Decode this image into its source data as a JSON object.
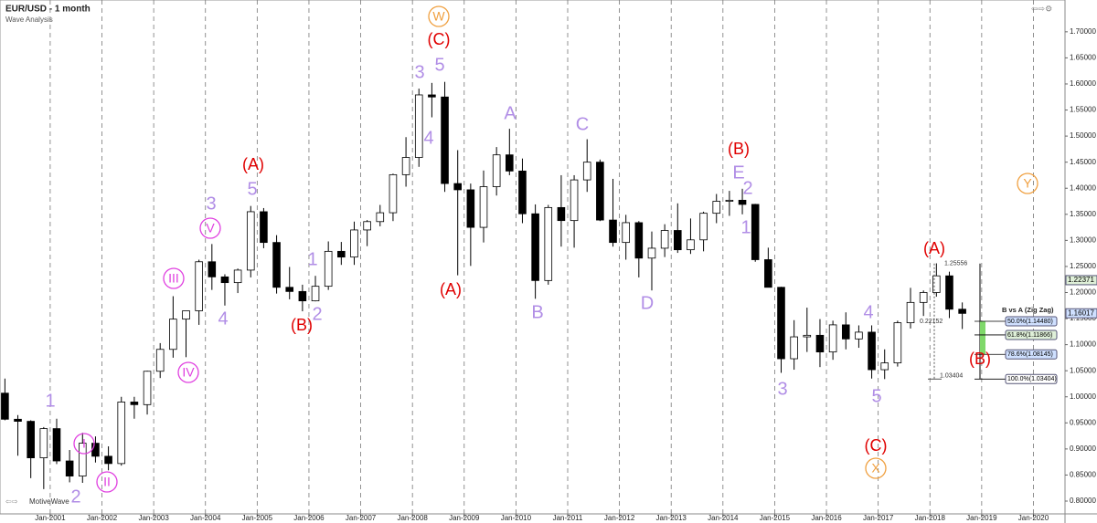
{
  "chart_data": {
    "type": "candlestick",
    "title": "EUR/USD - 1 month",
    "subtitle": "Wave Analysis",
    "brand": "MotiveWave",
    "grid": true,
    "up_color": "#ffffff",
    "down_color": "#000000",
    "x": [
      2000.125,
      2000.375,
      2000.625,
      2000.875,
      2001.125,
      2001.375,
      2001.625,
      2001.875,
      2002.125,
      2002.375,
      2002.625,
      2002.875,
      2003.125,
      2003.375,
      2003.625,
      2003.875,
      2004.125,
      2004.375,
      2004.625,
      2004.875,
      2005.125,
      2005.375,
      2005.625,
      2005.875,
      2006.125,
      2006.375,
      2006.625,
      2006.875,
      2007.125,
      2007.375,
      2007.625,
      2007.875,
      2008.125,
      2008.375,
      2008.625,
      2008.875,
      2009.125,
      2009.375,
      2009.625,
      2009.875,
      2010.125,
      2010.375,
      2010.625,
      2010.875,
      2011.125,
      2011.375,
      2011.625,
      2011.875,
      2012.125,
      2012.375,
      2012.625,
      2012.875,
      2013.125,
      2013.375,
      2013.625,
      2013.875,
      2014.125,
      2014.375,
      2014.625,
      2014.875,
      2015.125,
      2015.375,
      2015.625,
      2015.875,
      2016.125,
      2016.375,
      2016.625,
      2016.875,
      2017.125,
      2017.375,
      2017.625,
      2017.875,
      2018.125,
      2018.375,
      2018.625
    ],
    "open": [
      1.007,
      0.957,
      0.953,
      0.883,
      0.939,
      0.877,
      0.848,
      0.911,
      0.886,
      0.872,
      0.99,
      0.985,
      1.049,
      1.091,
      1.149,
      1.165,
      1.259,
      1.23,
      1.219,
      1.243,
      1.355,
      1.296,
      1.21,
      1.202,
      1.184,
      1.212,
      1.279,
      1.268,
      1.32,
      1.336,
      1.353,
      1.426,
      1.459,
      1.579,
      1.575,
      1.409,
      1.397,
      1.325,
      1.403,
      1.464,
      1.433,
      1.351,
      1.223,
      1.363,
      1.338,
      1.416,
      1.45,
      1.339,
      1.296,
      1.334,
      1.266,
      1.285,
      1.319,
      1.282,
      1.301,
      1.352,
      1.375,
      1.377,
      1.369,
      1.263,
      1.21,
      1.073,
      1.115,
      1.118,
      1.086,
      1.138,
      1.111,
      1.124,
      1.052,
      1.065,
      1.142,
      1.181,
      1.2,
      1.232,
      1.168
    ],
    "high": [
      1.035,
      0.965,
      0.955,
      0.942,
      0.958,
      0.898,
      0.931,
      0.924,
      0.905,
      1.0,
      1.0,
      1.05,
      1.103,
      1.193,
      1.165,
      1.263,
      1.293,
      1.235,
      1.246,
      1.366,
      1.362,
      1.31,
      1.249,
      1.215,
      1.232,
      1.298,
      1.297,
      1.336,
      1.339,
      1.368,
      1.428,
      1.498,
      1.591,
      1.602,
      1.604,
      1.473,
      1.409,
      1.434,
      1.479,
      1.514,
      1.457,
      1.369,
      1.368,
      1.425,
      1.425,
      1.494,
      1.455,
      1.418,
      1.349,
      1.337,
      1.317,
      1.331,
      1.371,
      1.342,
      1.355,
      1.389,
      1.395,
      1.399,
      1.37,
      1.286,
      1.211,
      1.147,
      1.171,
      1.149,
      1.146,
      1.162,
      1.137,
      1.137,
      1.091,
      1.146,
      1.209,
      1.204,
      1.256,
      1.24,
      1.181
    ],
    "low": [
      0.955,
      0.887,
      0.844,
      0.823,
      0.871,
      0.836,
      0.835,
      0.874,
      0.859,
      0.868,
      0.958,
      0.966,
      1.036,
      1.075,
      1.076,
      1.138,
      1.205,
      1.175,
      1.199,
      1.229,
      1.285,
      1.198,
      1.187,
      1.164,
      1.183,
      1.205,
      1.253,
      1.253,
      1.289,
      1.327,
      1.337,
      1.403,
      1.441,
      1.536,
      1.393,
      1.233,
      1.251,
      1.296,
      1.386,
      1.425,
      1.333,
      1.188,
      1.215,
      1.288,
      1.286,
      1.393,
      1.337,
      1.288,
      1.263,
      1.229,
      1.204,
      1.268,
      1.276,
      1.274,
      1.279,
      1.333,
      1.347,
      1.35,
      1.259,
      1.21,
      1.046,
      1.052,
      1.086,
      1.057,
      1.071,
      1.091,
      1.094,
      1.035,
      1.034,
      1.058,
      1.131,
      1.155,
      1.192,
      1.151,
      1.13
    ],
    "close": [
      0.957,
      0.953,
      0.883,
      0.939,
      0.877,
      0.848,
      0.911,
      0.886,
      0.872,
      0.99,
      0.985,
      1.049,
      1.091,
      1.149,
      1.165,
      1.259,
      1.23,
      1.219,
      1.243,
      1.355,
      1.296,
      1.21,
      1.202,
      1.184,
      1.212,
      1.279,
      1.268,
      1.32,
      1.336,
      1.353,
      1.426,
      1.459,
      1.579,
      1.575,
      1.409,
      1.397,
      1.325,
      1.403,
      1.464,
      1.433,
      1.351,
      1.223,
      1.363,
      1.338,
      1.416,
      1.45,
      1.339,
      1.296,
      1.334,
      1.266,
      1.285,
      1.319,
      1.282,
      1.301,
      1.352,
      1.375,
      1.377,
      1.369,
      1.263,
      1.21,
      1.073,
      1.115,
      1.118,
      1.086,
      1.138,
      1.111,
      1.124,
      1.052,
      1.065,
      1.142,
      1.181,
      1.2,
      1.232,
      1.168,
      1.16
    ],
    "xlim": [
      2000.03,
      2020.61
    ],
    "ylim": [
      0.7755,
      1.761
    ],
    "xticks": [
      {
        "value": 2001,
        "label": "Jan-2001"
      },
      {
        "value": 2002,
        "label": "Jan-2002"
      },
      {
        "value": 2003,
        "label": "Jan-2003"
      },
      {
        "value": 2004,
        "label": "Jan-2004"
      },
      {
        "value": 2005,
        "label": "Jan-2005"
      },
      {
        "value": 2006,
        "label": "Jan-2006"
      },
      {
        "value": 2007,
        "label": "Jan-2007"
      },
      {
        "value": 2008,
        "label": "Jan-2008"
      },
      {
        "value": 2009,
        "label": "Jan-2009"
      },
      {
        "value": 2010,
        "label": "Jan-2010"
      },
      {
        "value": 2011,
        "label": "Jan-2011"
      },
      {
        "value": 2012,
        "label": "Jan-2012"
      },
      {
        "value": 2013,
        "label": "Jan-2013"
      },
      {
        "value": 2014,
        "label": "Jan-2014"
      },
      {
        "value": 2015,
        "label": "Jan-2015"
      },
      {
        "value": 2016,
        "label": "Jan-2016"
      },
      {
        "value": 2017,
        "label": "Jan-2017"
      },
      {
        "value": 2018,
        "label": "Jan-2018"
      },
      {
        "value": 2019,
        "label": "Jan-2019"
      },
      {
        "value": 2020,
        "label": "Jan-2020"
      }
    ],
    "yticks": [
      {
        "value": 0.8,
        "label": "0.80000"
      },
      {
        "value": 0.85,
        "label": "0.85000"
      },
      {
        "value": 0.9,
        "label": "0.90000"
      },
      {
        "value": 0.95,
        "label": "0.95000"
      },
      {
        "value": 1.0,
        "label": "1.00000"
      },
      {
        "value": 1.05,
        "label": "1.05000"
      },
      {
        "value": 1.1,
        "label": "1.10000"
      },
      {
        "value": 1.15,
        "label": "1.15000"
      },
      {
        "value": 1.2,
        "label": "1.20000"
      },
      {
        "value": 1.25,
        "label": "1.25000"
      },
      {
        "value": 1.3,
        "label": "1.30000"
      },
      {
        "value": 1.35,
        "label": "1.35000"
      },
      {
        "value": 1.4,
        "label": "1.40000"
      },
      {
        "value": 1.45,
        "label": "1.45000"
      },
      {
        "value": 1.5,
        "label": "1.50000"
      },
      {
        "value": 1.55,
        "label": "1.55000"
      },
      {
        "value": 1.6,
        "label": "1.60000"
      },
      {
        "value": 1.65,
        "label": "1.65000"
      },
      {
        "value": 1.7,
        "label": "1.70000"
      }
    ],
    "price_labels": [
      {
        "value": 1.22371,
        "label": "1.22371"
      },
      {
        "value": 1.16017,
        "label": "1.16017"
      }
    ],
    "fib_title": "B vs A (Zig Zag)",
    "fib_levels": [
      {
        "value": 1.1448,
        "label": "50.0%(1.14480)"
      },
      {
        "value": 1.11866,
        "label": "61.8%(1.11866)"
      },
      {
        "value": 1.08145,
        "label": "78.6%(1.08145)"
      },
      {
        "value": 1.03404,
        "label": "100.0%(1.03404)"
      }
    ],
    "measure_labels": [
      "1.25556",
      "0.22152",
      "1.03404"
    ],
    "wave_minor": [
      "1",
      "2",
      "1",
      "2",
      "3",
      "5",
      "4",
      "3",
      "5",
      "4",
      "A",
      "B",
      "C",
      "D",
      "E",
      "2",
      "1",
      "3",
      "4",
      "5"
    ],
    "wave_major": [
      "(A)",
      "(B)",
      "(C)",
      "(A)",
      "(B)",
      "(A)",
      "(B)",
      "(C)"
    ],
    "wave_circle": [
      "I",
      "II",
      "III",
      "IV",
      "V"
    ],
    "wave_top": [
      "W",
      "X",
      "Y"
    ]
  }
}
